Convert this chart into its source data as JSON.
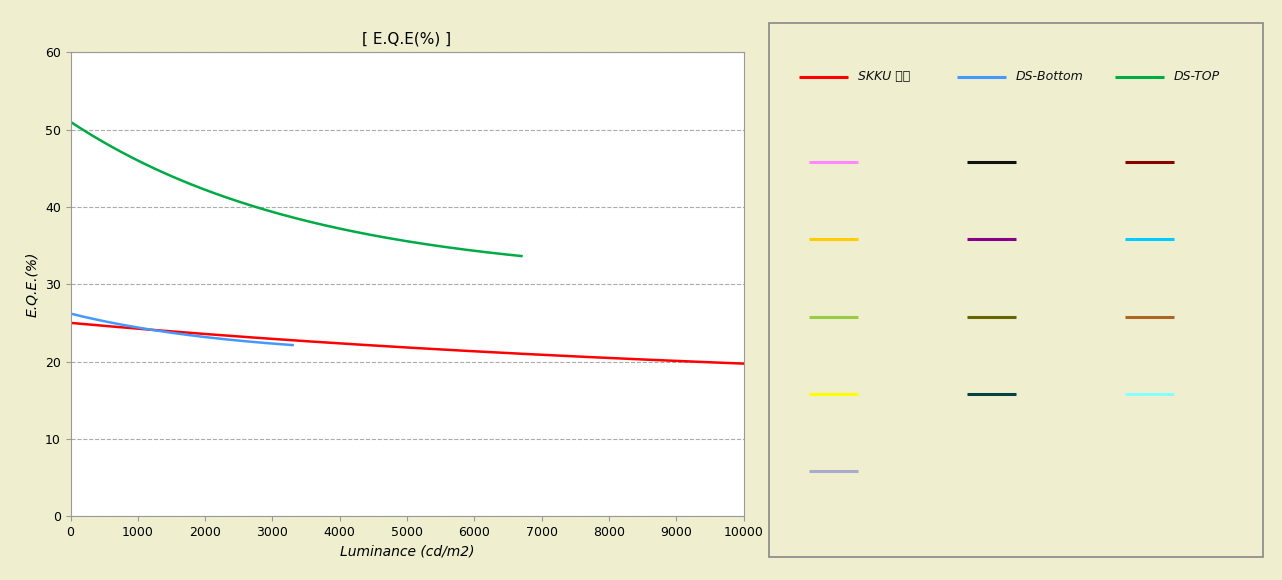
{
  "title": "[ E.Q.E(%) ]",
  "xlabel": "Luminance (cd/m2)",
  "ylabel": "E.Q.E.(%)",
  "background_outer": "#efefd0",
  "background_plot": "#ffffff",
  "background_legend": "#cccccc",
  "xlim": [
    0,
    10000
  ],
  "ylim": [
    0,
    60
  ],
  "xticks": [
    0,
    1000,
    2000,
    3000,
    4000,
    5000,
    6000,
    7000,
    8000,
    9000,
    10000
  ],
  "yticks": [
    0,
    10,
    20,
    30,
    40,
    50,
    60
  ],
  "grid_color": "#aaaaaa",
  "legend_labels": [
    "SKKU 결과",
    "DS-Bottom",
    "DS-TOP"
  ],
  "legend_colors": [
    "#ff0000",
    "#4499ff",
    "#00aa44"
  ],
  "extra_legend_colors": [
    [
      "#ff88ff",
      "#111111",
      "#880000"
    ],
    [
      "#ffcc00",
      "#880088",
      "#00ccff"
    ],
    [
      "#99cc44",
      "#666600",
      "#aa6622"
    ],
    [
      "#ffff00",
      "#004444",
      "#88ffff"
    ],
    [
      "#aaaacc",
      null,
      null
    ]
  ],
  "red_x_end": 10000,
  "red_y0": 25.0,
  "red_y_end": 17.0,
  "red_decay": 8.5e-05,
  "red_floor": 15.8,
  "blue_x_end": 3300,
  "blue_y0": 26.2,
  "blue_y_end": 21.5,
  "blue_decay": 0.00038,
  "blue_floor": 20.5,
  "green_x_end": 6700,
  "green_y0": 51.0,
  "green_y_end": 33.0,
  "green_decay": 0.00028,
  "green_floor": 30.5
}
